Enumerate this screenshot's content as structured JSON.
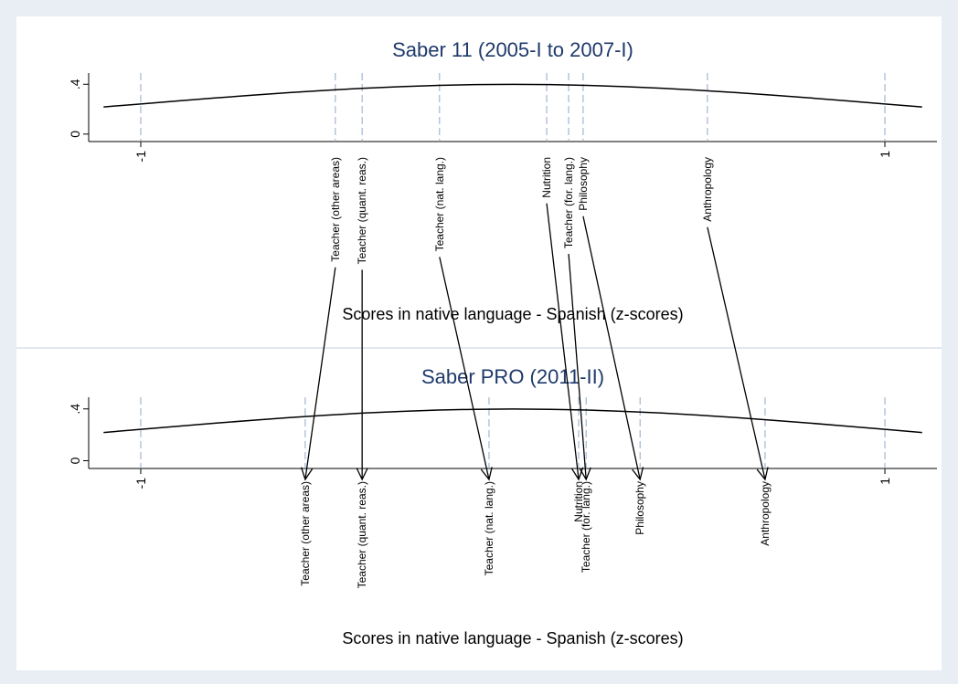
{
  "chart_data": [
    {
      "type": "line",
      "title": "Saber 11 (2005-I to 2007-I)",
      "xlabel": "Scores in  native language - Spanish (z-scores)",
      "xlim": [
        -1.14,
        1.14
      ],
      "xticks": [
        -1,
        1
      ],
      "ylim": [
        -0.06,
        0.49
      ],
      "yticks": [
        0,
        {
          "value": 0.4,
          "label": ".4"
        }
      ],
      "color": "#000000",
      "marker_color": "#8fa8c8",
      "x": [
        -1.1,
        -1.0,
        -0.9,
        -0.8,
        -0.7,
        -0.6,
        -0.5,
        -0.4,
        -0.3,
        -0.2,
        -0.1,
        0.0,
        0.1,
        0.2,
        0.3,
        0.4,
        0.5,
        0.6,
        0.7,
        0.8,
        0.9,
        1.0,
        1.1
      ],
      "values": [
        0.218,
        0.242,
        0.266,
        0.29,
        0.312,
        0.333,
        0.352,
        0.368,
        0.381,
        0.391,
        0.397,
        0.399,
        0.397,
        0.391,
        0.381,
        0.368,
        0.352,
        0.333,
        0.312,
        0.29,
        0.266,
        0.242,
        0.218
      ],
      "markers": [
        {
          "label": "Teacher (other areas)",
          "x": -0.477
        },
        {
          "label": "Teacher (quant. reas.)",
          "x": -0.405
        },
        {
          "label": "Teacher (nat. lang.)",
          "x": -0.197
        },
        {
          "label": "Nutrition",
          "x": 0.091
        },
        {
          "label": "Teacher (for. lang.)",
          "x": 0.15
        },
        {
          "label": "Philosophy",
          "x": 0.189
        },
        {
          "label": "Anthropology",
          "x": 0.523
        }
      ]
    },
    {
      "type": "line",
      "title": "Saber PRO (2011-II)",
      "xlabel": "Scores in native language - Spanish (z-scores)",
      "xlim": [
        -1.14,
        1.14
      ],
      "xticks": [
        -1,
        1
      ],
      "ylim": [
        -0.06,
        0.49
      ],
      "yticks": [
        0,
        {
          "value": 0.4,
          "label": ".4"
        }
      ],
      "color": "#000000",
      "marker_color": "#8fa8c8",
      "x": [
        -1.1,
        -1.0,
        -0.9,
        -0.8,
        -0.7,
        -0.6,
        -0.5,
        -0.4,
        -0.3,
        -0.2,
        -0.1,
        0.0,
        0.1,
        0.2,
        0.3,
        0.4,
        0.5,
        0.6,
        0.7,
        0.8,
        0.9,
        1.0,
        1.1
      ],
      "values": [
        0.218,
        0.242,
        0.266,
        0.29,
        0.312,
        0.333,
        0.352,
        0.368,
        0.381,
        0.391,
        0.397,
        0.399,
        0.397,
        0.391,
        0.381,
        0.368,
        0.352,
        0.333,
        0.312,
        0.29,
        0.266,
        0.242,
        0.218
      ],
      "markers": [
        {
          "label": "Teacher (other areas)",
          "x": -0.558
        },
        {
          "label": "Teacher (quant. reas.)",
          "x": -0.405
        },
        {
          "label": "Teacher (nat. lang.)",
          "x": -0.064
        },
        {
          "label": "Nutrition",
          "x": 0.177
        },
        {
          "label": "Teacher (for. lang.)",
          "x": 0.197
        },
        {
          "label": "Philosophy",
          "x": 0.342
        },
        {
          "label": "Anthropology",
          "x": 0.678
        }
      ]
    }
  ]
}
